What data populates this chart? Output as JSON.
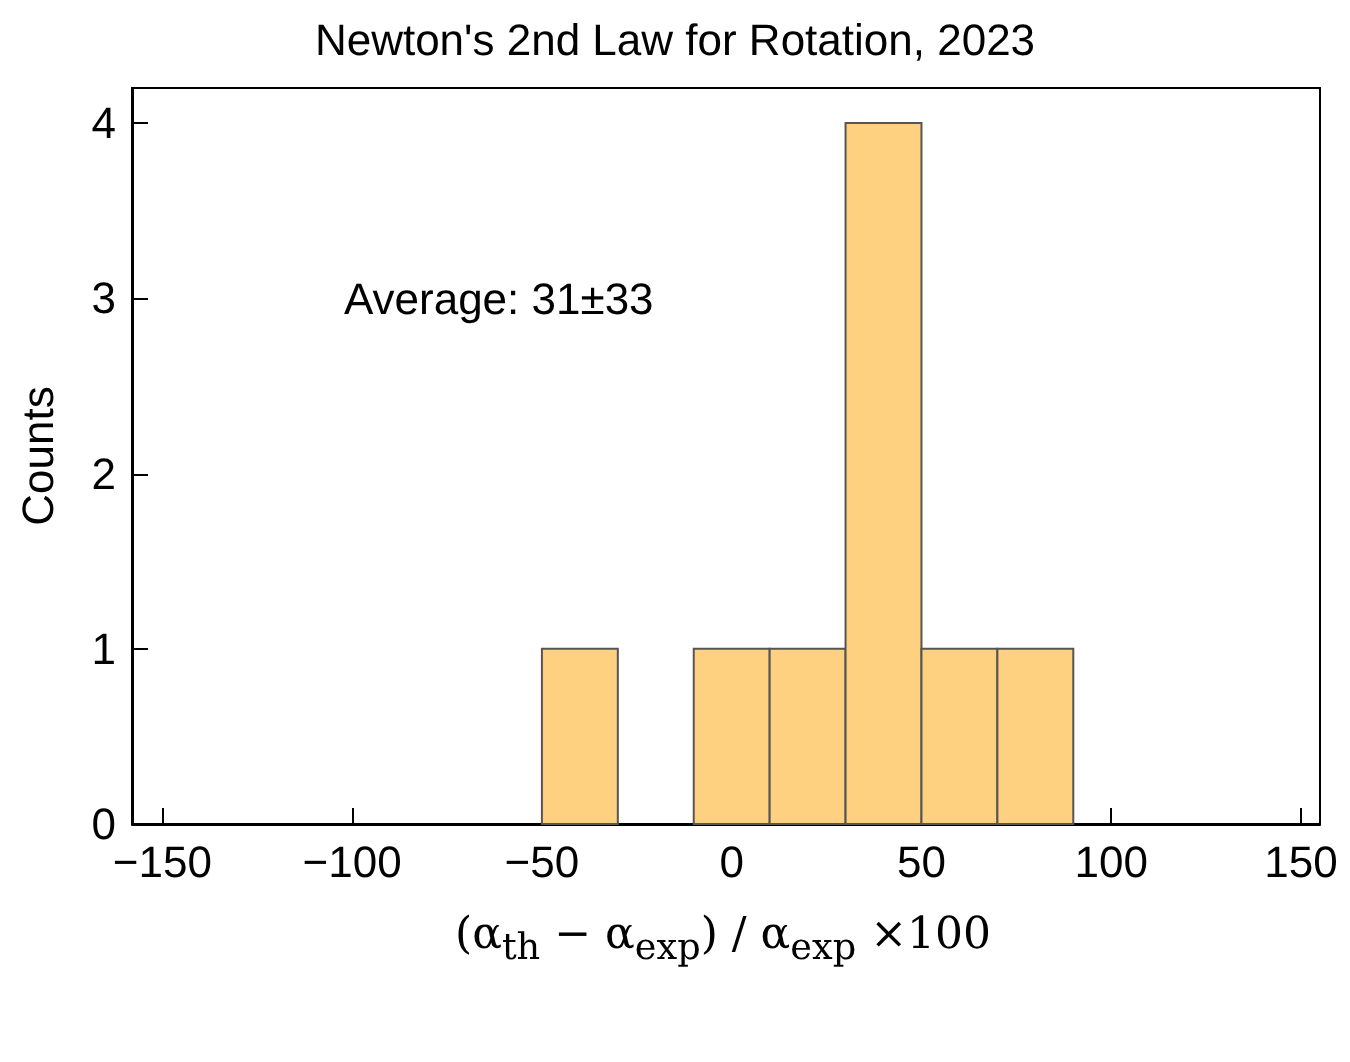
{
  "chart_data": {
    "type": "histogram",
    "title": "Newton's 2nd Law for Rotation, 2023",
    "xlabel": "(α$_{th}$ − α$_{exp}$) / α$_{exp}$ ×100",
    "ylabel": "Counts",
    "annotations": [
      "Average: 31±33"
    ],
    "bins": [
      -50,
      -30,
      -10,
      10,
      30,
      50,
      70,
      90
    ],
    "values": [
      1,
      0,
      1,
      1,
      4,
      1,
      1
    ],
    "color": "#fdd180",
    "xlim": [
      -158,
      155
    ],
    "xticks": [
      {
        "value": -150,
        "label": "−150"
      },
      {
        "value": -100,
        "label": "−100"
      },
      {
        "value": -50,
        "label": "−50"
      },
      0,
      50,
      100,
      150
    ],
    "ylim": [
      0,
      4.2
    ],
    "yticks": [
      0,
      1,
      2,
      3,
      4
    ],
    "grid": false
  }
}
